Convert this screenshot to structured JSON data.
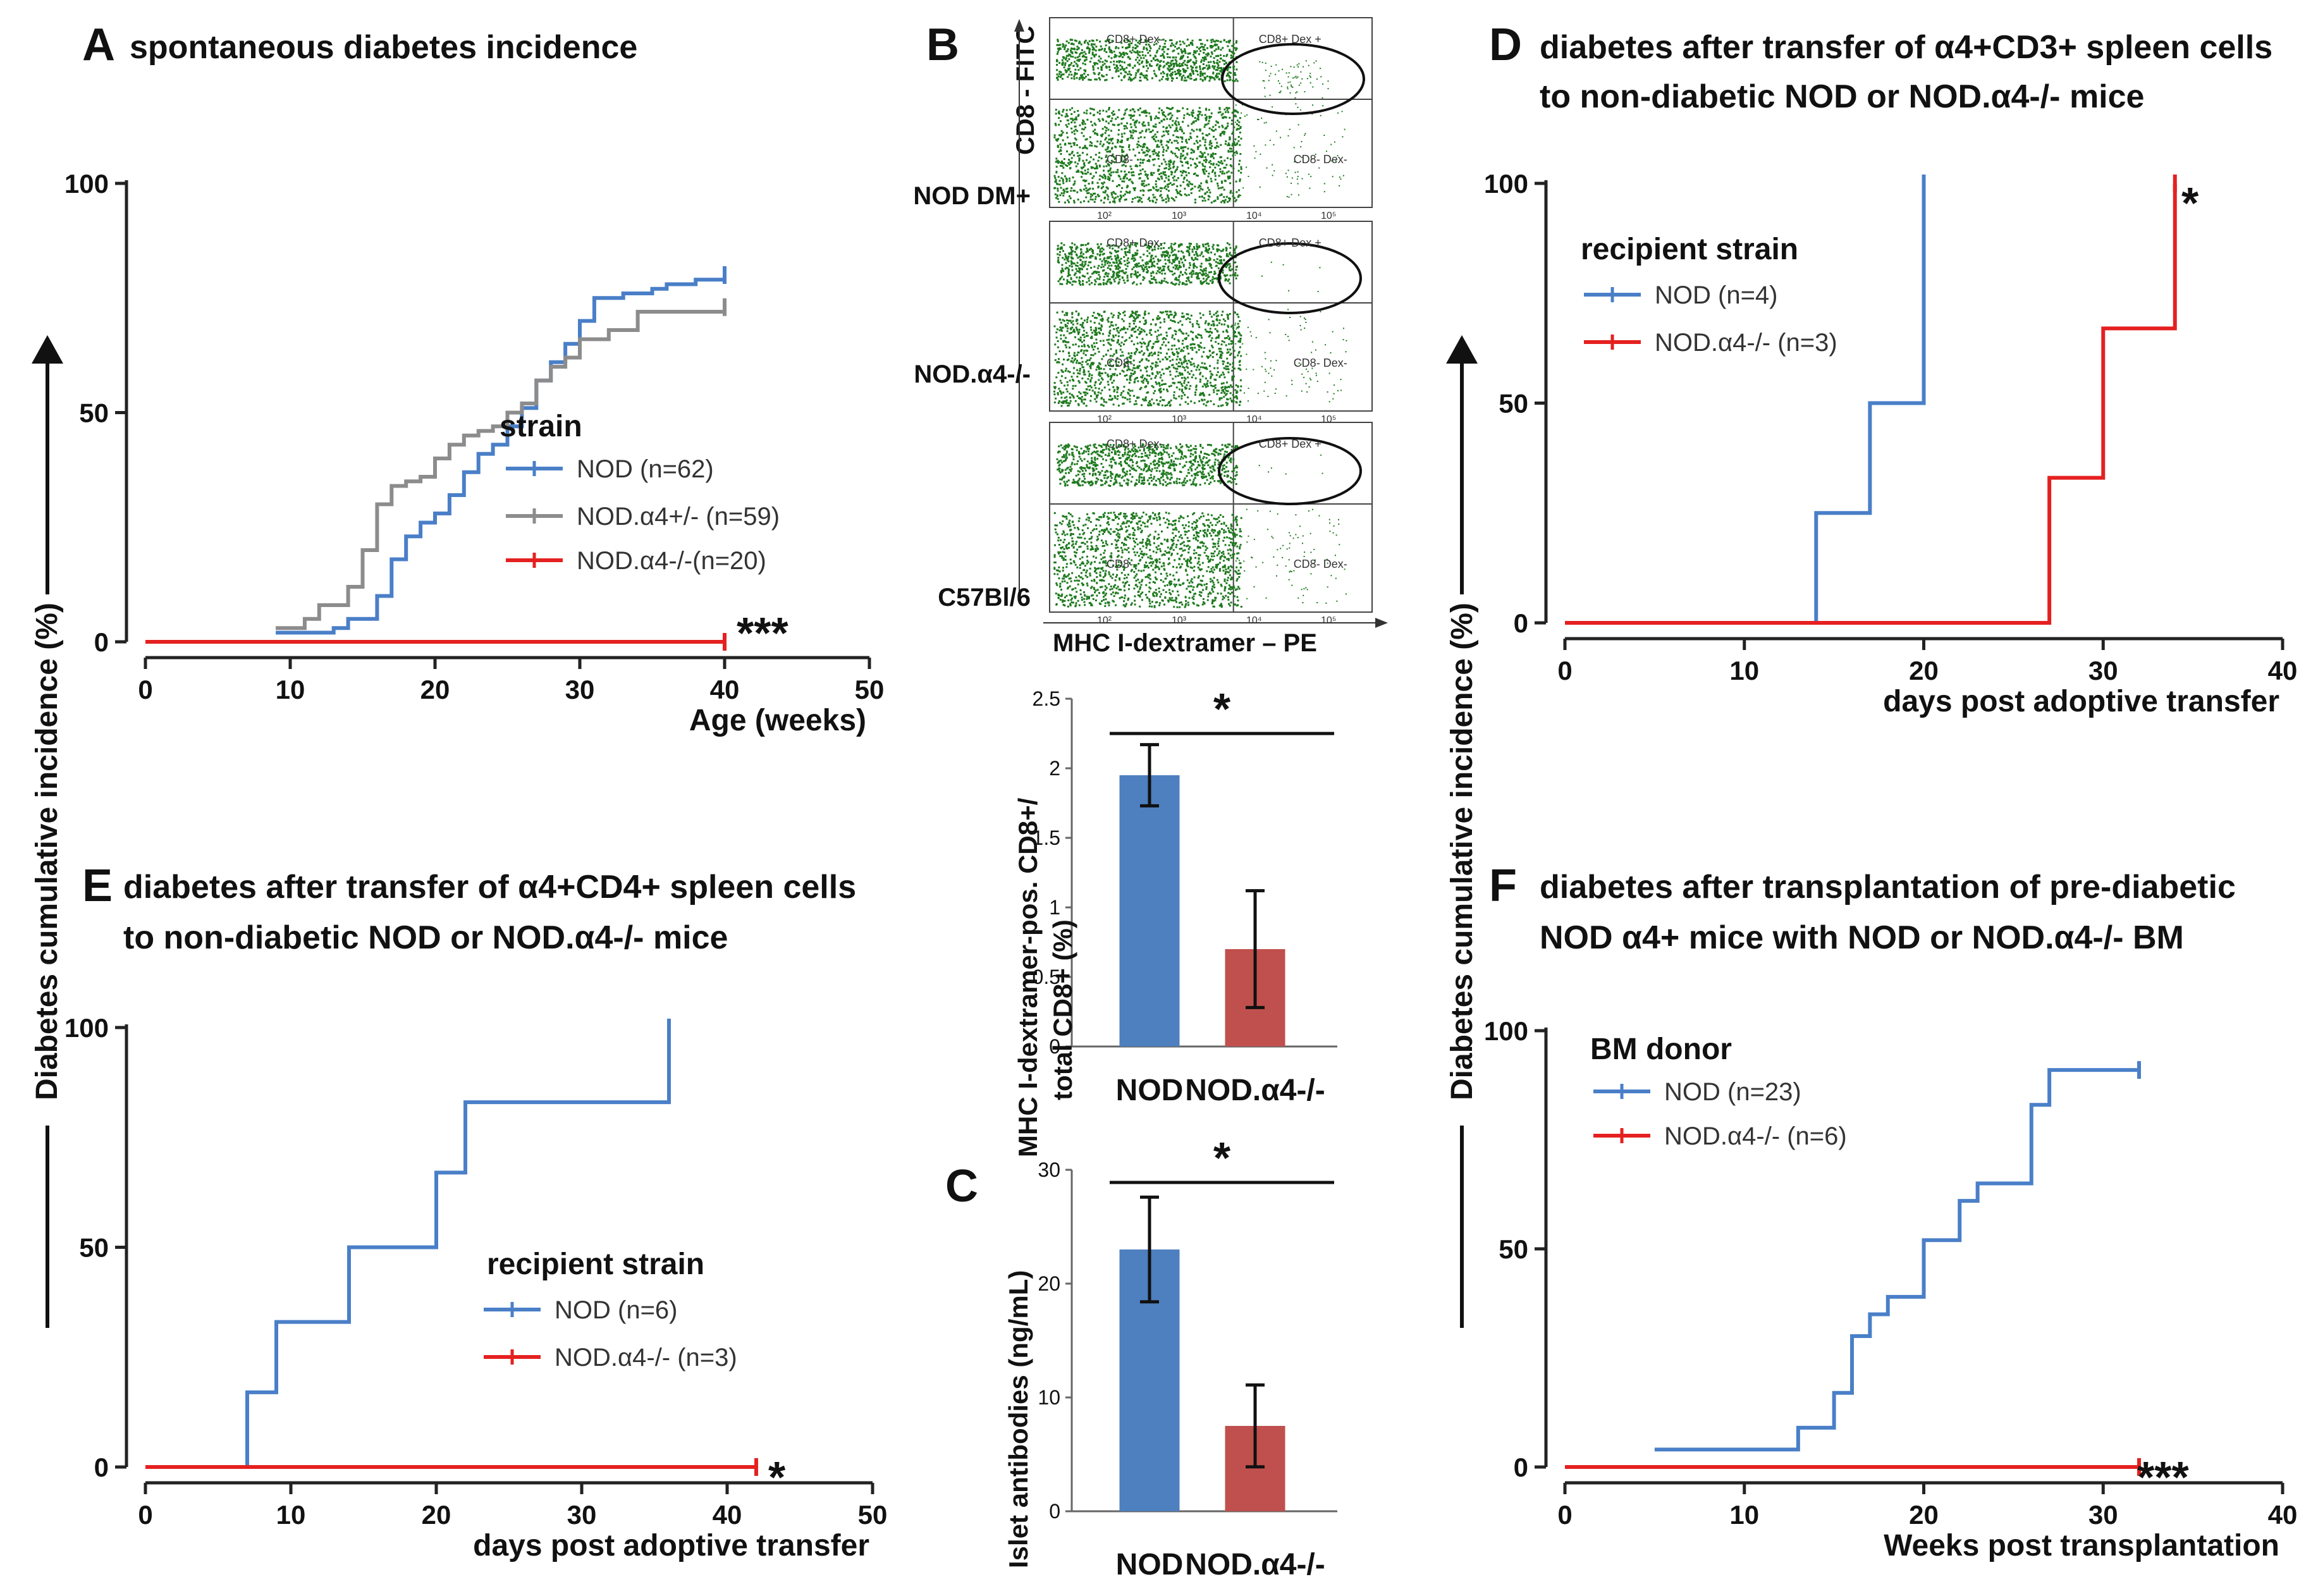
{
  "colors": {
    "blue": "#4a7fc8",
    "gray": "#8c8c8c",
    "red": "#e52020",
    "bar_blue": "#4e7fbe",
    "bar_red": "#c0504d",
    "flow": "#1f7a1f"
  },
  "common": {
    "y_axis_label": "Diabetes cumulative incidence (%)"
  },
  "panel_a": {
    "letter": "A",
    "title": "spontaneous diabetes incidence"
  },
  "panel_b": {
    "letter": "B",
    "y_label": "CD8 - FITC",
    "x_label": "MHC I-dextramer – PE",
    "rows": [
      "NOD DM+",
      "NOD.α4-/-",
      "C57Bl/6"
    ],
    "quadrants": {
      "ul": "CD8+ Dex-",
      "ur": "CD8+ Dex +",
      "ll": "CD8-",
      "lr": "CD8- Dex-"
    },
    "ticks": [
      "10²",
      "10³",
      "10⁴",
      "10⁵"
    ]
  },
  "panel_c": {
    "letter": "C"
  },
  "panel_d": {
    "letter": "D",
    "title_l1": "diabetes after transfer of α4+CD3+ spleen cells",
    "title_l2": "to non-diabetic NOD or NOD.α4-/- mice"
  },
  "panel_e": {
    "letter": "E",
    "title_l1": "diabetes after transfer of α4+CD4+ spleen cells",
    "title_l2": "to non-diabetic NOD or NOD.α4-/- mice"
  },
  "panel_f": {
    "letter": "F",
    "title_l1": "diabetes after transplantation of pre-diabetic",
    "title_l2": "NOD α4+ mice with NOD or NOD.α4-/- BM"
  },
  "chart_data": [
    {
      "id": "A",
      "type": "line",
      "step": true,
      "xlabel": "Age (weeks)",
      "ylabel": "Diabetes cumulative incidence (%)",
      "xlim": [
        0,
        50
      ],
      "ylim": [
        0,
        100
      ],
      "xticks": [
        0,
        10,
        20,
        30,
        40,
        50
      ],
      "yticks": [
        0,
        50,
        100
      ],
      "legend_title": "strain",
      "significance": "***",
      "series": [
        {
          "name": "NOD (n=62)",
          "color": "#4a7fc8",
          "x": [
            9,
            11,
            13,
            14,
            16,
            17,
            18,
            19,
            20,
            21,
            22,
            23,
            24,
            25,
            26,
            27,
            28,
            29,
            30,
            31,
            33,
            35,
            36,
            38,
            40
          ],
          "y": [
            2,
            2,
            3,
            5,
            10,
            18,
            23,
            26,
            28,
            32,
            37,
            41,
            43,
            47,
            51,
            57,
            61,
            65,
            70,
            75,
            76,
            77,
            78,
            79,
            80
          ]
        },
        {
          "name": "NOD.α4+/- (n=59)",
          "color": "#8c8c8c",
          "x": [
            9,
            11,
            12,
            14,
            15,
            16,
            17,
            18,
            19,
            20,
            21,
            22,
            23,
            24,
            25,
            26,
            27,
            28,
            29,
            30,
            32,
            34,
            40
          ],
          "y": [
            3,
            5,
            8,
            12,
            20,
            30,
            34,
            35,
            36,
            40,
            43,
            45,
            46,
            47,
            50,
            52,
            57,
            60,
            62,
            66,
            68,
            72,
            73
          ]
        },
        {
          "name": "NOD.α4-/-(n=20)",
          "color": "#e52020",
          "x": [
            0,
            40
          ],
          "y": [
            0,
            0
          ]
        }
      ]
    },
    {
      "id": "B",
      "type": "bar",
      "categories": [
        "NOD",
        "NOD.α4-/-"
      ],
      "values": [
        1.95,
        0.7
      ],
      "errors": [
        0.22,
        0.42
      ],
      "ylabel": "MHC I-dextramer-pos. CD8+/ total CD8+ (%)",
      "ylim": [
        0,
        2.5
      ],
      "yticks": [
        "0",
        "0.5",
        "1",
        "1.5",
        "2",
        "2.5"
      ],
      "significance": "*"
    },
    {
      "id": "C",
      "type": "bar",
      "categories": [
        "NOD",
        "NOD.α4-/-"
      ],
      "values": [
        23,
        7.5
      ],
      "errors": [
        4.6,
        3.6
      ],
      "ylabel": "Islet antibodies (ng/mL)",
      "ylim": [
        0,
        30
      ],
      "yticks": [
        "0",
        "10",
        "20",
        "30"
      ],
      "significance": "*"
    },
    {
      "id": "D",
      "type": "line",
      "step": true,
      "xlabel": "days post adoptive transfer",
      "ylabel": "Diabetes cumulative incidence (%)",
      "xlim": [
        0,
        40
      ],
      "ylim": [
        0,
        100
      ],
      "xticks": [
        0,
        10,
        20,
        30,
        40
      ],
      "yticks": [
        0,
        50,
        100
      ],
      "legend_title": "recipient strain",
      "significance": "*",
      "series": [
        {
          "name": "NOD (n=4)",
          "color": "#4a7fc8",
          "x": [
            0,
            14,
            17,
            20
          ],
          "y": [
            0,
            25,
            50,
            100
          ]
        },
        {
          "name": "NOD.α4-/- (n=3)",
          "color": "#e52020",
          "x": [
            0,
            27,
            30,
            34
          ],
          "y": [
            0,
            33,
            67,
            100
          ]
        }
      ]
    },
    {
      "id": "E",
      "type": "line",
      "step": true,
      "xlabel": "days post adoptive transfer",
      "ylabel": "Diabetes cumulative incidence (%)",
      "xlim": [
        0,
        50
      ],
      "ylim": [
        0,
        100
      ],
      "xticks": [
        0,
        10,
        20,
        30,
        40,
        50
      ],
      "yticks": [
        0,
        50,
        100
      ],
      "legend_title": "recipient strain",
      "significance": "*",
      "series": [
        {
          "name": "NOD (n=6)",
          "color": "#4a7fc8",
          "x": [
            0,
            7,
            9,
            14,
            20,
            22,
            36
          ],
          "y": [
            0,
            17,
            33,
            50,
            67,
            83,
            100
          ]
        },
        {
          "name": "NOD.α4-/- (n=3)",
          "color": "#e52020",
          "x": [
            0,
            42
          ],
          "y": [
            0,
            0
          ]
        }
      ]
    },
    {
      "id": "F",
      "type": "line",
      "step": true,
      "xlabel": "Weeks post transplantation",
      "ylabel": "Diabetes cumulative incidence (%)",
      "xlim": [
        0,
        40
      ],
      "ylim": [
        0,
        100
      ],
      "xticks": [
        0,
        10,
        20,
        30,
        40
      ],
      "yticks": [
        0,
        50,
        100
      ],
      "legend_title": "BM donor",
      "significance": "***",
      "series": [
        {
          "name": "NOD (n=23)",
          "color": "#4a7fc8",
          "x": [
            5,
            13,
            15,
            16,
            17,
            18,
            20,
            22,
            23,
            26,
            27,
            32
          ],
          "y": [
            4,
            9,
            17,
            30,
            35,
            39,
            52,
            61,
            65,
            83,
            91,
            91
          ]
        },
        {
          "name": "NOD.α4-/- (n=6)",
          "color": "#e52020",
          "x": [
            0,
            32
          ],
          "y": [
            0,
            0
          ]
        }
      ]
    }
  ]
}
